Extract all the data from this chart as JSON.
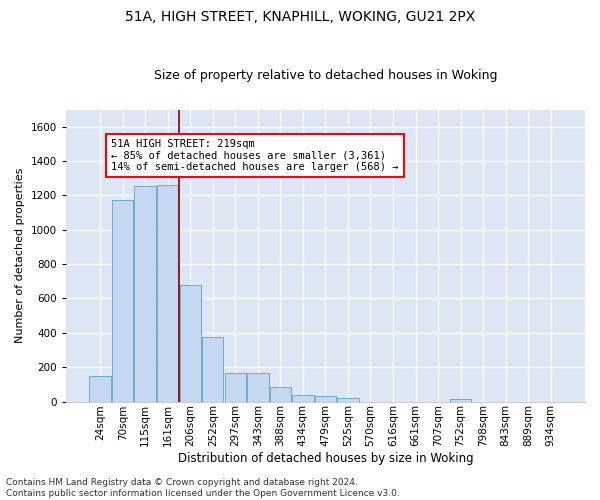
{
  "title1": "51A, HIGH STREET, KNAPHILL, WOKING, GU21 2PX",
  "title2": "Size of property relative to detached houses in Woking",
  "xlabel": "Distribution of detached houses by size in Woking",
  "ylabel": "Number of detached properties",
  "categories": [
    "24sqm",
    "70sqm",
    "115sqm",
    "161sqm",
    "206sqm",
    "252sqm",
    "297sqm",
    "343sqm",
    "388sqm",
    "434sqm",
    "479sqm",
    "525sqm",
    "570sqm",
    "616sqm",
    "661sqm",
    "707sqm",
    "752sqm",
    "798sqm",
    "843sqm",
    "889sqm",
    "934sqm"
  ],
  "values": [
    150,
    1175,
    1255,
    1260,
    680,
    375,
    168,
    168,
    83,
    38,
    30,
    20,
    0,
    0,
    0,
    0,
    13,
    0,
    0,
    0,
    0
  ],
  "bar_color": "#c5d8f0",
  "bar_edge_color": "#6aaad4",
  "vertical_line_color": "#8b0000",
  "annotation_text": "51A HIGH STREET: 219sqm\n← 85% of detached houses are smaller (3,361)\n14% of semi-detached houses are larger (568) →",
  "annotation_box_color": "white",
  "annotation_box_edge_color": "red",
  "ylim": [
    0,
    1700
  ],
  "yticks": [
    0,
    200,
    400,
    600,
    800,
    1000,
    1200,
    1400,
    1600
  ],
  "background_color": "#dce6f5",
  "grid_color": "white",
  "footer": "Contains HM Land Registry data © Crown copyright and database right 2024.\nContains public sector information licensed under the Open Government Licence v3.0.",
  "title1_fontsize": 10,
  "title2_fontsize": 9,
  "xlabel_fontsize": 8.5,
  "ylabel_fontsize": 8,
  "tick_fontsize": 7.5,
  "footer_fontsize": 6.5,
  "vline_pos": 4.5
}
